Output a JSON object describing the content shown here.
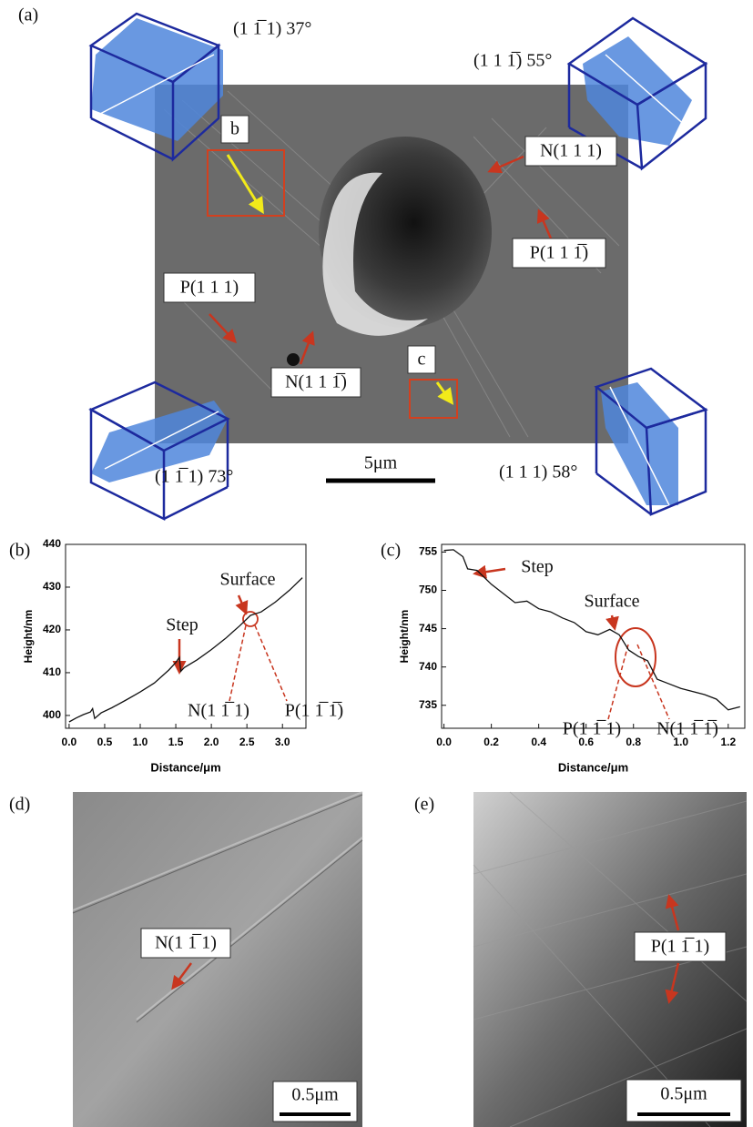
{
  "figure_a": {
    "panel_label": "(a)",
    "orientations": [
      "(1 1̅ 1) 37°",
      "(1 1 1̅) 55°",
      "(1 1̅ 1) 73°",
      "(1 1 1) 58°"
    ],
    "box_labels": [
      "b",
      "c"
    ],
    "annotations": [
      "N(1 1 1)",
      "P(1 1 1̅)",
      "P(1 1 1)",
      "N(1 1 1̅)"
    ],
    "scale_bar": "5μm"
  },
  "chart_data": [
    {
      "type": "line",
      "panel_label": "(b)",
      "x_label": "Distance/μm",
      "y_label": "Height/nm",
      "color": "#111111",
      "x": [
        0,
        0.1,
        0.2,
        0.3,
        0.33,
        0.36,
        0.45,
        0.6,
        0.8,
        1.0,
        1.2,
        1.4,
        1.5,
        1.55,
        1.57,
        1.62,
        1.8,
        2.0,
        2.2,
        2.4,
        2.55,
        2.7,
        2.9,
        3.1,
        3.28
      ],
      "values": [
        398.5,
        399.4,
        400.2,
        400.8,
        401.6,
        399.3,
        400.6,
        401.8,
        403.6,
        405.5,
        407.6,
        410.6,
        412.4,
        413.6,
        410.3,
        411.2,
        413,
        415.4,
        418,
        421,
        423.4,
        424.2,
        426.5,
        429.3,
        432.2
      ],
      "xlim": [
        -0.05,
        3.33
      ],
      "ylim": [
        397,
        440
      ],
      "xticks": [
        {
          "value": 0,
          "label": "0.0"
        },
        0.5,
        {
          "value": 1,
          "label": "1.0"
        },
        1.5,
        {
          "value": 2,
          "label": "2.0"
        },
        2.5,
        {
          "value": 3,
          "label": "3.0"
        }
      ],
      "yticks": [
        400,
        410,
        420,
        430,
        440
      ],
      "annotations": [
        "Step",
        "Surface",
        "N(1 1̅ 1)",
        "P(1 1̅ 1̅)"
      ]
    },
    {
      "type": "line",
      "panel_label": "(c)",
      "x_label": "Distance/μm",
      "y_label": "Height/nm",
      "color": "#111111",
      "x": [
        0,
        0.04,
        0.08,
        0.1,
        0.14,
        0.2,
        0.25,
        0.3,
        0.35,
        0.4,
        0.45,
        0.5,
        0.55,
        0.6,
        0.65,
        0.7,
        0.74,
        0.78,
        0.82,
        0.86,
        0.9,
        0.95,
        1.0,
        1.05,
        1.1,
        1.15,
        1.2,
        1.25
      ],
      "values": [
        755.2,
        755.3,
        754.4,
        752.8,
        752.6,
        750.8,
        749.6,
        748.4,
        748.6,
        747.6,
        747.2,
        746.4,
        745.8,
        744.6,
        744.2,
        744.9,
        744.2,
        742.2,
        741.4,
        740.8,
        738.4,
        737.8,
        737.2,
        736.8,
        736.4,
        735.8,
        734.4,
        734.8
      ],
      "xlim": [
        -0.01,
        1.27
      ],
      "ylim": [
        732,
        756
      ],
      "xticks": [
        {
          "value": 0,
          "label": "0.0"
        },
        0.2,
        0.4,
        0.6,
        0.8,
        {
          "value": 1,
          "label": "1.0"
        },
        1.2
      ],
      "yticks": [
        735,
        740,
        745,
        750,
        755
      ],
      "annotations": [
        "Step",
        "Surface",
        "P(1 1̅ 1)",
        "N(1 1̅ 1̅)"
      ]
    }
  ],
  "figure_d": {
    "panel_label": "(d)",
    "annotation": "N(1 1̅ 1)",
    "scale_bar": "0.5μm"
  },
  "figure_e": {
    "panel_label": "(e)",
    "annotation": "P(1 1̅ 1)",
    "scale_bar": "0.5μm"
  }
}
